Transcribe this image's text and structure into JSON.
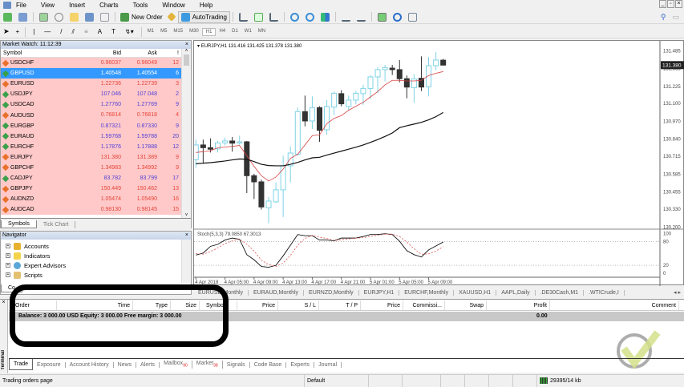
{
  "menu": [
    "File",
    "View",
    "Insert",
    "Charts",
    "Tools",
    "Window",
    "Help"
  ],
  "toolbar": {
    "new_order": "New Order",
    "auto_trading": "AutoTrading",
    "timeframes": [
      "M1",
      "M5",
      "M15",
      "M30",
      "H1",
      "H4",
      "D1",
      "W1",
      "MN"
    ],
    "active_timeframe": "H1"
  },
  "market_watch": {
    "title": "Market Watch: 11:12:39",
    "columns": [
      "Symbol",
      "Bid",
      "Ask",
      "!"
    ],
    "rows": [
      {
        "symbol": "USDCHF",
        "bid": "0.96037",
        "ask": "0.96049",
        "spread": "12",
        "dir": "down",
        "color": "red"
      },
      {
        "symbol": "GBPUSD",
        "bid": "1.40548",
        "ask": "1.40554",
        "spread": "6",
        "dir": "up",
        "color": "red",
        "selected": true
      },
      {
        "symbol": "EURUSD",
        "bid": "1.22736",
        "ask": "1.22739",
        "spread": "3",
        "dir": "down",
        "color": "red"
      },
      {
        "symbol": "USDJPY",
        "bid": "107.046",
        "ask": "107.048",
        "spread": "2",
        "dir": "up",
        "color": "blue"
      },
      {
        "symbol": "USDCAD",
        "bid": "1.27760",
        "ask": "1.27769",
        "spread": "9",
        "dir": "up",
        "color": "blue"
      },
      {
        "symbol": "AUDUSD",
        "bid": "0.76814",
        "ask": "0.76818",
        "spread": "4",
        "dir": "down",
        "color": "red"
      },
      {
        "symbol": "EURGBP",
        "bid": "0.87321",
        "ask": "0.87330",
        "spread": "9",
        "dir": "up",
        "color": "blue"
      },
      {
        "symbol": "EURAUD",
        "bid": "1.59768",
        "ask": "1.59788",
        "spread": "20",
        "dir": "up",
        "color": "blue"
      },
      {
        "symbol": "EURCHF",
        "bid": "1.17876",
        "ask": "1.17888",
        "spread": "12",
        "dir": "up",
        "color": "blue"
      },
      {
        "symbol": "EURJPY",
        "bid": "131.380",
        "ask": "131.389",
        "spread": "9",
        "dir": "down",
        "color": "red"
      },
      {
        "symbol": "GBPCHF",
        "bid": "1.34983",
        "ask": "1.34992",
        "spread": "9",
        "dir": "down",
        "color": "red"
      },
      {
        "symbol": "CADJPY",
        "bid": "83.782",
        "ask": "83.799",
        "spread": "17",
        "dir": "up",
        "color": "blue"
      },
      {
        "symbol": "GBPJPY",
        "bid": "150.449",
        "ask": "150.462",
        "spread": "13",
        "dir": "down",
        "color": "red"
      },
      {
        "symbol": "AUDNZD",
        "bid": "1.05474",
        "ask": "1.05490",
        "spread": "16",
        "dir": "down",
        "color": "red"
      },
      {
        "symbol": "AUDCAD",
        "bid": "0.98130",
        "ask": "0.98145",
        "spread": "15",
        "dir": "down",
        "color": "red"
      }
    ],
    "tabs": [
      "Symbols",
      "Tick Chart"
    ]
  },
  "navigator": {
    "title": "Navigator",
    "items": [
      "Accounts",
      "Indicators",
      "Expert Advisors",
      "Scripts"
    ],
    "tab": "Co"
  },
  "chart_data": {
    "type": "candlestick",
    "title": "EURJPY,H1  131.416 131.425 131.378 131.380",
    "ylim": [
      130.2,
      131.485
    ],
    "y_ticks": [
      "131.485",
      "131.355",
      "131.225",
      "131.100",
      "130.970",
      "130.840",
      "130.715",
      "130.585",
      "130.455",
      "130.330",
      "130.200"
    ],
    "current_price": "131.380",
    "x_ticks": [
      {
        "index": 0,
        "label": "4 Apr 2018"
      },
      {
        "index": 4,
        "label": "4 Apr 05:00"
      },
      {
        "index": 8,
        "label": "4 Apr 09:00"
      },
      {
        "index": 12,
        "label": "4 Apr 13:00"
      },
      {
        "index": 16,
        "label": "4 Apr 17:00"
      },
      {
        "index": 20,
        "label": "4 Apr 21:00"
      },
      {
        "index": 24,
        "label": "5 Apr 01:00"
      },
      {
        "index": 28,
        "label": "5 Apr 05:00"
      },
      {
        "index": 32,
        "label": "5 Apr 09:00"
      }
    ],
    "ohlc": [
      [
        130.691,
        130.837,
        130.632,
        130.798
      ],
      [
        130.798,
        130.837,
        130.661,
        130.778
      ],
      [
        130.778,
        130.846,
        130.743,
        130.767
      ],
      [
        130.769,
        130.827,
        130.743,
        130.813
      ],
      [
        130.813,
        130.852,
        130.794,
        130.827
      ],
      [
        130.827,
        130.856,
        130.749,
        130.811
      ],
      [
        130.813,
        130.866,
        130.798,
        130.821
      ],
      [
        130.821,
        130.827,
        130.447,
        130.574
      ],
      [
        130.574,
        130.587,
        130.404,
        130.529
      ],
      [
        130.529,
        130.545,
        130.327,
        130.346
      ],
      [
        130.34,
        130.418,
        130.227,
        130.389
      ],
      [
        130.383,
        130.525,
        130.375,
        130.471
      ],
      [
        130.471,
        130.72,
        130.272,
        130.646
      ],
      [
        130.646,
        130.788,
        130.525,
        130.739
      ],
      [
        130.73,
        131.07,
        130.72,
        131.041
      ],
      [
        131.041,
        131.158,
        130.934,
        130.973
      ],
      [
        130.973,
        131.152,
        130.915,
        131.07
      ],
      [
        131.07,
        131.08,
        130.821,
        130.905
      ],
      [
        130.909,
        131.125,
        130.872,
        131.078
      ],
      [
        131.074,
        131.187,
        131.016,
        131.175
      ],
      [
        131.172,
        131.197,
        131.08,
        131.098
      ],
      [
        131.078,
        131.158,
        131.047,
        131.125
      ],
      [
        131.125,
        131.191,
        131.094,
        131.175
      ],
      [
        131.172,
        131.236,
        131.09,
        131.21
      ],
      [
        131.21,
        131.308,
        131.133,
        131.294
      ],
      [
        131.294,
        131.366,
        131.177,
        131.347
      ],
      [
        131.347,
        131.382,
        131.261,
        131.362
      ],
      [
        131.358,
        131.382,
        131.308,
        131.347
      ],
      [
        131.347,
        131.417,
        131.255,
        131.281
      ],
      [
        131.281,
        131.304,
        131.138,
        131.22
      ],
      [
        131.216,
        131.314,
        131.105,
        131.279
      ],
      [
        131.284,
        131.444,
        131.191,
        131.22
      ],
      [
        131.222,
        131.44,
        131.152,
        131.376
      ],
      [
        131.376,
        131.475,
        131.343,
        131.417
      ],
      [
        131.416,
        131.425,
        131.378,
        131.38
      ]
    ],
    "ma_fast": [
      130.743,
      130.749,
      130.755,
      130.778,
      130.782,
      130.788,
      130.794,
      130.72,
      130.642,
      130.574,
      130.535,
      130.564,
      130.622,
      130.7,
      130.73,
      130.798,
      130.866,
      130.872,
      130.953,
      130.992,
      131.012,
      131.051,
      131.08,
      131.109,
      131.148,
      131.187,
      131.236,
      131.269,
      131.269,
      131.265,
      131.265,
      131.269,
      131.304,
      131.32,
      131.333
    ],
    "ma_slow": [
      130.661,
      130.665,
      130.669,
      130.675,
      130.681,
      130.689,
      130.696,
      130.694,
      130.677,
      130.657,
      130.648,
      130.646,
      130.646,
      130.657,
      130.671,
      130.689,
      130.704,
      130.708,
      130.724,
      130.739,
      130.753,
      130.767,
      130.782,
      130.798,
      130.817,
      130.837,
      130.86,
      130.885,
      130.924,
      130.938,
      130.95,
      130.963,
      130.981,
      131.004,
      131.035
    ],
    "colors": {
      "bull": "#7fd3e6",
      "bear": "#333333",
      "ma_fast": "#d84040",
      "ma_slow": "#111111"
    },
    "stochastic": {
      "label": "Stoch(5,3,3) 79.0850 67.3013",
      "ylim": [
        0,
        100
      ],
      "levels": [
        20,
        80
      ],
      "y_ticks": [
        "100",
        "80",
        "20",
        "0"
      ],
      "main": [
        46,
        51,
        68,
        73,
        84,
        89,
        86,
        47,
        34,
        17,
        15,
        20,
        44,
        71,
        98,
        95,
        95,
        84,
        84,
        82,
        89,
        89,
        89,
        93,
        98,
        98,
        100,
        98,
        81,
        57,
        47,
        41,
        59,
        69,
        79
      ],
      "signal": [
        50,
        48,
        55,
        64,
        75,
        82,
        86,
        74,
        56,
        33,
        22,
        17,
        26,
        45,
        71,
        88,
        96,
        91,
        88,
        83,
        85,
        87,
        89,
        90,
        93,
        96,
        99,
        99,
        93,
        79,
        62,
        48,
        49,
        56,
        67
      ]
    }
  },
  "chart_tabs": [
    "EURUSD,Monthly",
    "EURAUD,Monthly",
    "EURNZD,Monthly",
    "EURJPY,H1",
    "EURCHF,Monthly",
    "XAUUSD,H1",
    "AAPL,Daily",
    ".DE30Cash,M1",
    ".WTICrude,I"
  ],
  "terminal": {
    "side_label": "Terminal",
    "columns": [
      "Order",
      "Time",
      "Type",
      "Size",
      "Symbol",
      "Price",
      "S / L",
      "T / P",
      "Price",
      "Commissi...",
      "Swap",
      "Profit",
      "Comment"
    ],
    "summary": "Balance: 3 000.00 USD  Equity: 3 000.00  Free margin: 3 000.00",
    "profit": "0.00",
    "tabs": [
      {
        "label": "Trade"
      },
      {
        "label": "Exposure"
      },
      {
        "label": "Account History"
      },
      {
        "label": "News"
      },
      {
        "label": "Alerts"
      },
      {
        "label": "Mailbox",
        "badge": "90"
      },
      {
        "label": "Market",
        "badge": "38"
      },
      {
        "label": "Signals"
      },
      {
        "label": "Code Base"
      },
      {
        "label": "Experts"
      },
      {
        "label": "Journal"
      }
    ]
  },
  "status": {
    "text": "Trading orders page",
    "profile": "Default",
    "traffic": "29395/14 kb"
  }
}
